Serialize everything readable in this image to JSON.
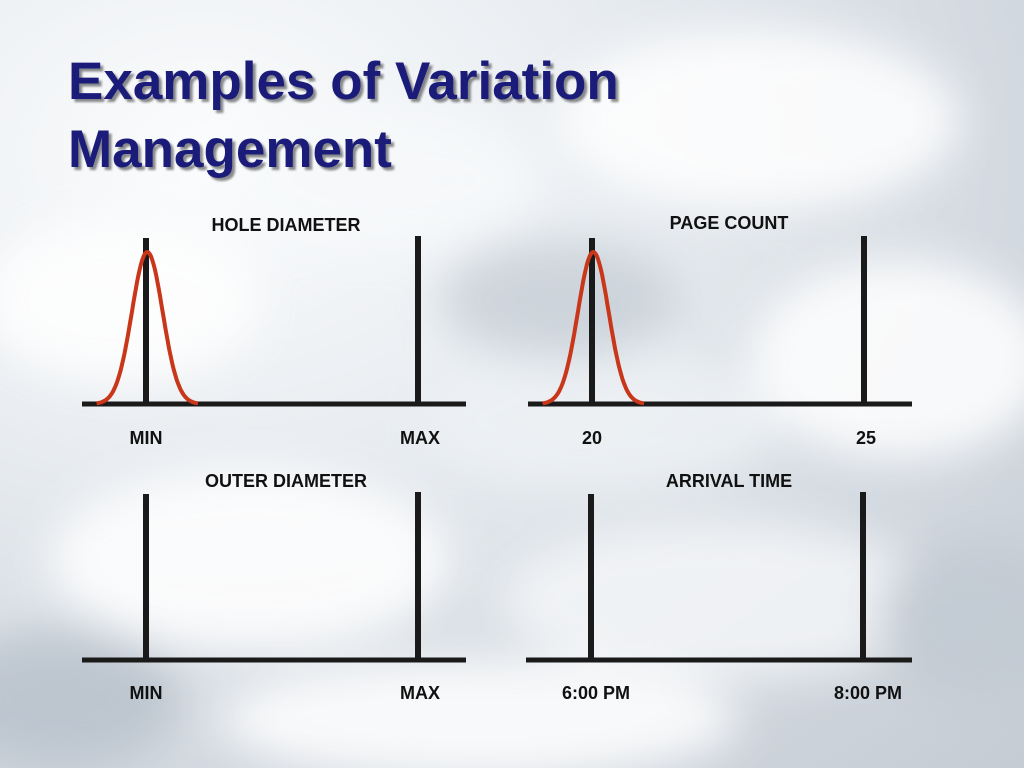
{
  "slide": {
    "title_line1": "Examples of Variation",
    "title_line2": "Management"
  },
  "colors": {
    "title": "#1b1c7a",
    "axis": "#1a1a1a",
    "curve": "#c8371a"
  },
  "chart_data": [
    {
      "type": "line",
      "title": "HOLE DIAMETER",
      "tick_labels": [
        "MIN",
        "MAX"
      ],
      "curve": {
        "peak_position": 0.17,
        "spread": 0.04
      }
    },
    {
      "type": "line",
      "title": "PAGE COUNT",
      "tick_labels": [
        "20",
        "25"
      ],
      "curve": {
        "peak_position": 0.17,
        "spread": 0.04
      }
    },
    {
      "type": "line",
      "title": "OUTER DIAMETER",
      "tick_labels": [
        "MIN",
        "MAX"
      ],
      "curve": null
    },
    {
      "type": "line",
      "title": "ARRIVAL TIME",
      "tick_labels": [
        "6:00 PM",
        "8:00 PM"
      ],
      "curve": null
    }
  ]
}
